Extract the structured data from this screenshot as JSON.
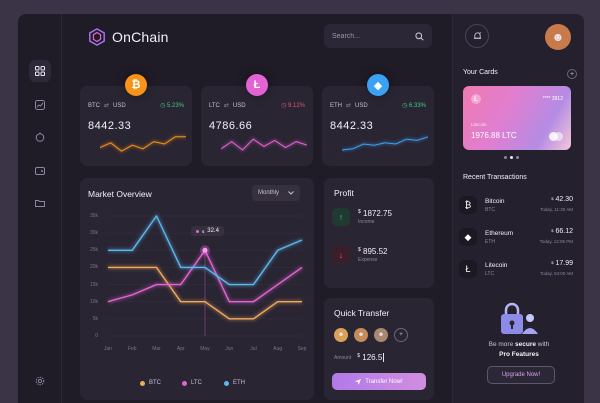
{
  "app": {
    "name": "OnChain"
  },
  "search": {
    "placeholder": "Search..."
  },
  "coins": [
    {
      "pair_from": "BTC",
      "pair_to": "USD",
      "change": "5.23%",
      "change_color": "#42c98a",
      "price": "8442.33",
      "color": "#f7931a",
      "glyph": "₿",
      "spark": [
        0.35,
        0.55,
        0.2,
        0.45,
        0.3,
        0.6,
        0.5,
        0.8,
        0.8
      ]
    },
    {
      "pair_from": "LTC",
      "pair_to": "USD",
      "change": "9.12%",
      "change_color": "#e0566f",
      "price": "4786.66",
      "color": "#e463d4",
      "glyph": "Ł",
      "spark": [
        0.3,
        0.6,
        0.25,
        0.7,
        0.4,
        0.65,
        0.35,
        0.6,
        0.45
      ]
    },
    {
      "pair_from": "ETH",
      "pair_to": "USD",
      "change": "6.33%",
      "change_color": "#42c98a",
      "price": "8442.33",
      "color": "#3aa1f4",
      "glyph": "◆",
      "spark": [
        0.25,
        0.3,
        0.5,
        0.45,
        0.55,
        0.5,
        0.7,
        0.65,
        0.8
      ]
    }
  ],
  "market": {
    "title": "Market Overview",
    "period": "Monthly",
    "tooltip": "32.4"
  },
  "chart_data": {
    "type": "line",
    "title": "Market Overview",
    "categories": [
      "Jan",
      "Feb",
      "Mar",
      "Apr",
      "May",
      "Jun",
      "Jul",
      "Aug",
      "Sep"
    ],
    "yticks": [
      "0",
      "5k",
      "10k",
      "15k",
      "20k",
      "25k",
      "30k",
      "35k"
    ],
    "ylim": [
      0,
      35
    ],
    "series": [
      {
        "name": "BTC",
        "color": "#f0a85a",
        "values": [
          20,
          20,
          20,
          10,
          10,
          5,
          5,
          10,
          10
        ]
      },
      {
        "name": "LTC",
        "color": "#e463d4",
        "values": [
          10,
          12,
          15,
          15,
          25,
          10,
          10,
          15,
          20
        ]
      },
      {
        "name": "ETH",
        "color": "#5bb8f0",
        "values": [
          25,
          25,
          35,
          20,
          20,
          15,
          15,
          25,
          28
        ]
      }
    ],
    "grid": true,
    "legend": "bottom"
  },
  "profit": {
    "title": "Profit",
    "income": {
      "value": "1872.75",
      "label": "Income"
    },
    "expense": {
      "value": "895.52",
      "label": "Expense"
    }
  },
  "quick_transfer": {
    "title": "Quick Transfer",
    "amount_label": "Amount",
    "amount": "126.5",
    "button": "Transfer Now!"
  },
  "cards": {
    "title": "Your Cards",
    "number": "**** 3912",
    "holder": "Litecoin",
    "balance": "1976.88 LTC"
  },
  "transactions": {
    "title": "Recent Transactions",
    "items": [
      {
        "name": "Bitcoin",
        "symbol": "BTC",
        "amount": "42.30",
        "date": "Today, 11:30 AM",
        "glyph": "₿"
      },
      {
        "name": "Ethereum",
        "symbol": "ETH",
        "amount": "66.12",
        "date": "Today, 12:05 PM",
        "glyph": "◆"
      },
      {
        "name": "Litecoin",
        "symbol": "LTC",
        "amount": "17.99",
        "date": "Today, 04:00 AM",
        "glyph": "Ł"
      }
    ]
  },
  "promo": {
    "text_a": "Be more ",
    "text_b": "secure",
    "text_c": " with",
    "text_d": "Pro Features",
    "button": "Upgrade Now!"
  }
}
